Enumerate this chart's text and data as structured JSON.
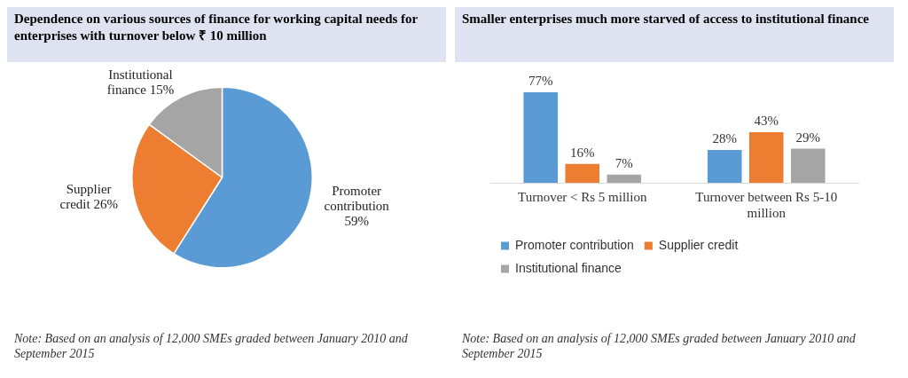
{
  "chart_data": [
    {
      "type": "pie",
      "title": "Dependence on various sources of finance for working capital needs for enterprises with turnover below ₹ 10 million",
      "categories": [
        "Promoter contribution",
        "Supplier credit",
        "Institutional finance"
      ],
      "values": [
        59,
        26,
        15
      ],
      "colors": [
        "#5b9bd5",
        "#ed7d31",
        "#a5a5a5"
      ],
      "value_labels": [
        "59%",
        "26%",
        "15%"
      ],
      "legend": false,
      "annotations": [
        "Note: Based on an analysis of 12,000 SMEs graded between January 2010 and September 2015"
      ]
    },
    {
      "type": "bar",
      "title": "Smaller enterprises much more starved of access to institutional finance",
      "categories": [
        "Turnover < Rs 5 million",
        "Turnover between Rs 5-10 million"
      ],
      "series": [
        {
          "name": "Promoter contribution",
          "color": "#5b9bd5",
          "values": [
            77,
            28
          ],
          "value_labels": [
            "77%",
            "28%"
          ]
        },
        {
          "name": "Supplier credit",
          "color": "#ed7d31",
          "values": [
            16,
            43
          ],
          "value_labels": [
            "16%",
            "43%"
          ]
        },
        {
          "name": "Institutional finance",
          "color": "#a5a5a5",
          "values": [
            7,
            29
          ],
          "value_labels": [
            "7%",
            "29%"
          ]
        }
      ],
      "legend": "bottom",
      "grid": false,
      "annotations": [
        "Note: Based on an analysis of 12,000 SMEs graded between January 2010 and September 2015"
      ]
    }
  ]
}
